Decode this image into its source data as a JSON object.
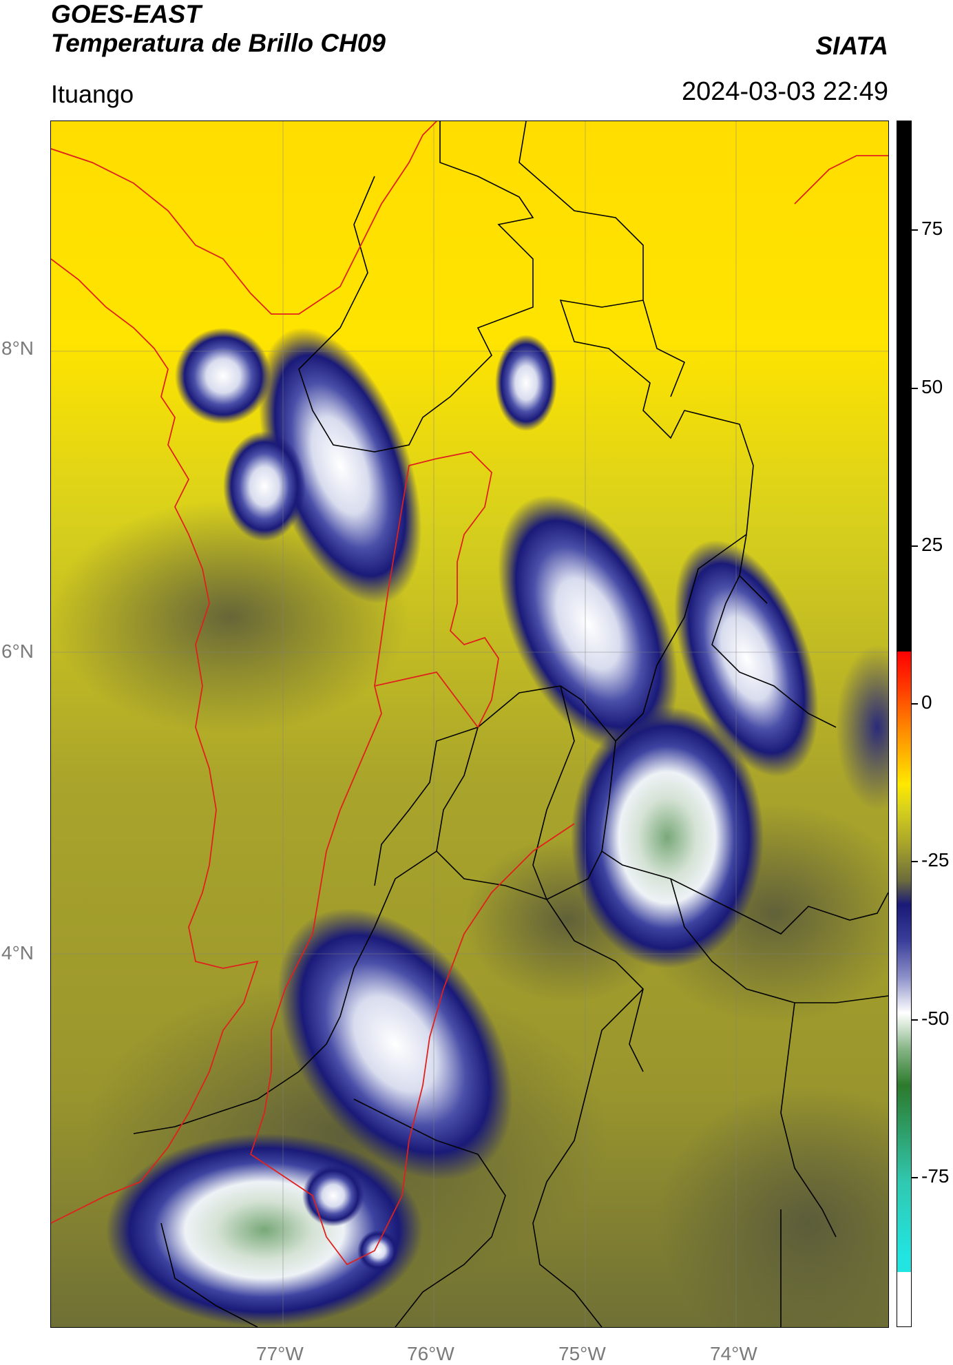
{
  "header": {
    "satellite": "GOES-EAST",
    "product": "Temperatura de Brillo CH09",
    "brand": "SIATA",
    "location": "Ituango",
    "timestamp": "2024-03-03 22:49"
  },
  "map": {
    "lat_labels": [
      "8°N",
      "6°N",
      "4°N"
    ],
    "lon_labels": [
      "77°W",
      "76°W",
      "75°W",
      "74°W"
    ],
    "colors": {
      "land_background": "#a8a428",
      "north_bg": "#ffe800",
      "cold_cloud": "#1a1a7a",
      "very_cold": "#e8eef5",
      "coldest": "#80b080",
      "boundary_country": "#e0201c",
      "boundary_admin": "#000000"
    }
  },
  "colorbar": {
    "ticks": [
      "75",
      "50",
      "25",
      "0",
      "-25",
      "-50",
      "-75"
    ]
  }
}
